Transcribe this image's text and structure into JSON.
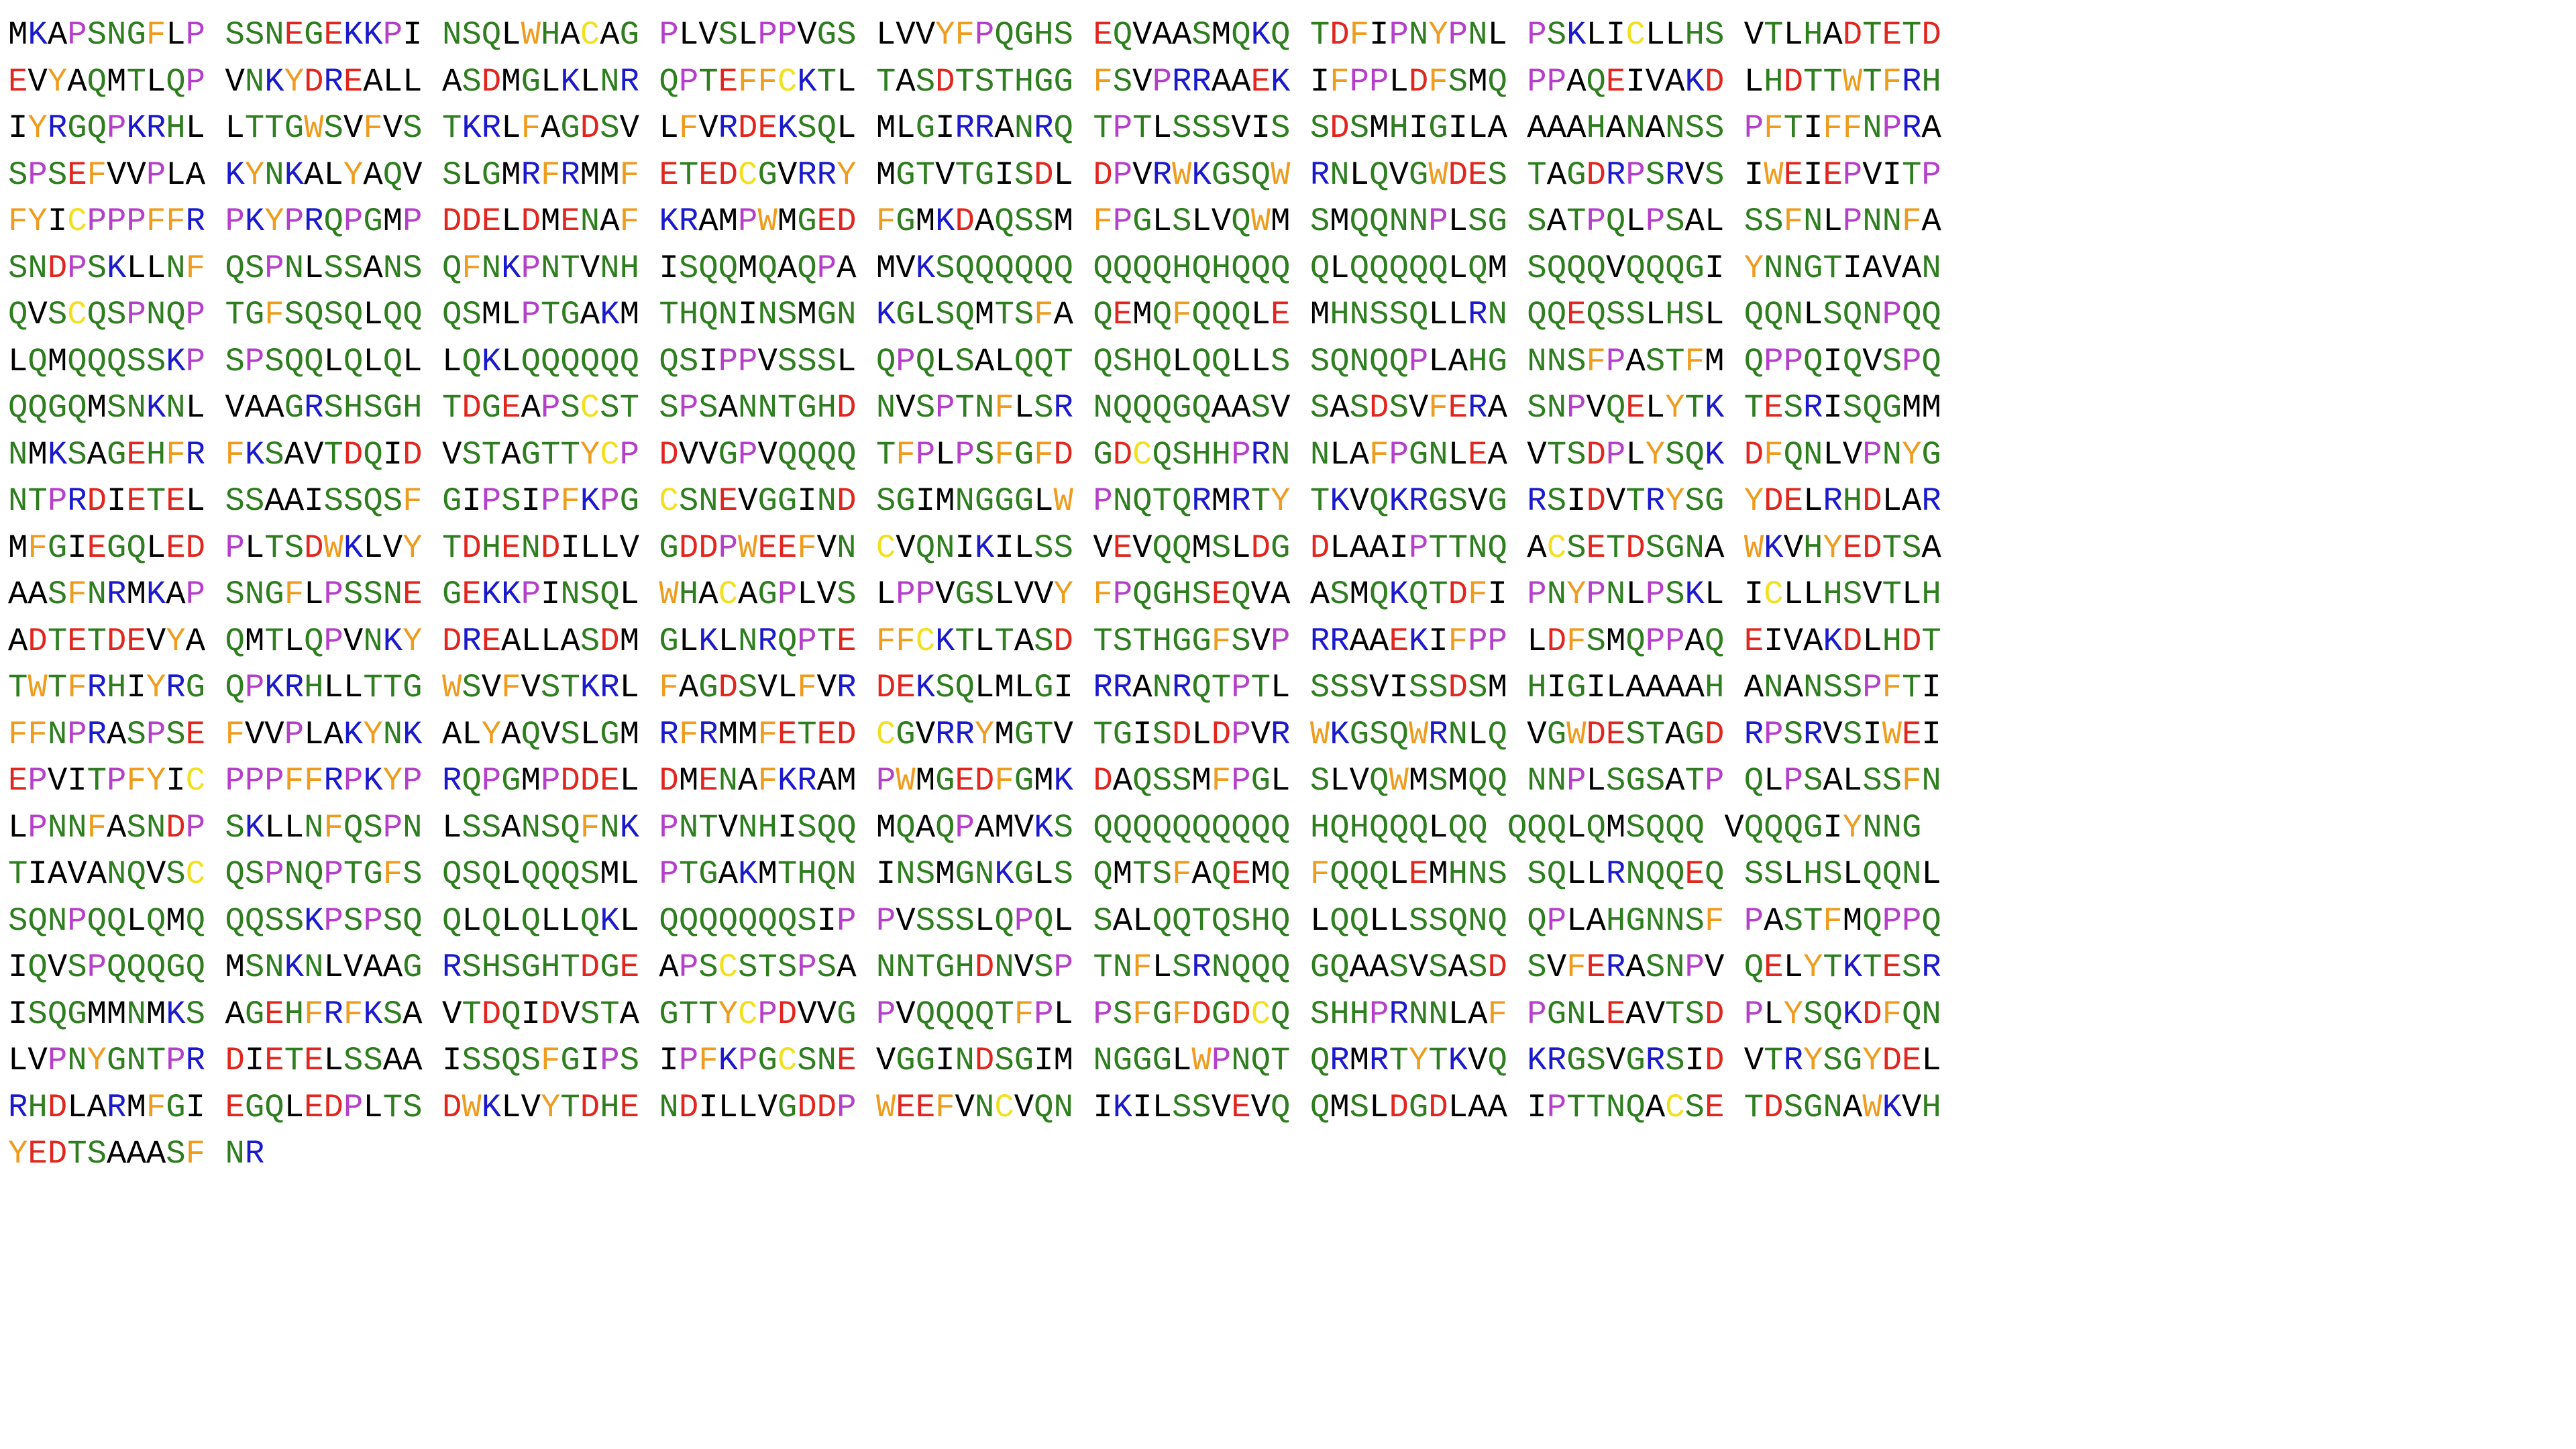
{
  "sequence": {
    "lines": [
      "MKAPSNGFLP SSNEGEKKPI NSQLWHACAG PLVSLPPVGS LVVYFPQGHS EQVAASMQKQ TDFIPNYPNL PSKLICLLHS VTLHADTETD",
      "EVYAQMTLQP VNKYDREALL ASDMGLKLNR QPTEFFCKTL TASDTSTHGG FSVPRRAAEK IFPPLDFSMQ PPAQEIVAKD LHDTTWTFRH",
      "IYRGQPKRHL LTTGWSVFVS TKRLFAGDSV LFVRDEKSQL MLGIRRANRQ TPTLSSSVIS SDSMHIGILA AAAHANANSS PFTIFFNPRA",
      "SPSEFVVPLA KYNKALYAQV SLGMRFRMMF ETEDCGVRRY MGTVTGISDL DPVRWKGSQW RNLQVGWDES TAGDRPSRVS IWEIEPVITP",
      "FYICPPPFFR PKYPRQPGMP DDELDMENAF KRAMPWMGED FGMKDAQSSM FPGLSLVQWM SMQQNNPLSG SATPQLPSAL SSFNLPNNFA",
      "SNDPSKLLNF QSPNLSSANS QFNKPNTVNH ISQQMQAQPA MVKSQQQQQQ QQQQHQHQQQ QLQQQQQLQM SQQQVQQQGI YNNGTIAVAN",
      "QVSCQSPNQP TGFSQSQLQQ QSMLPTGAKM THQNINSMGN KGLSQMTSFA QEMQFQQQLE MHNSSQLLRN QQEQSSLHSL QQNLSQNPQQ",
      "LQMQQQSSKP SPSQQLQLQL LQKLQQQQQQ QSIPPVSSSL QPQLSALQQT QSHQLQQLLS SQNQQPLAHG NNSFPASTFM QPPQIQVSPQ",
      "QQGQMSNKNL VAAGRSHSGH TDGEAPSCST SPSANNTGHD NVSPTNFLSR NQQQGQAASV SASDSVFERA SNPVQELYTK TESRISQGMM",
      "NMKSAGEHFR FKSAVTDQID VSTAGTTYCP DVVGPVQQQQ TFPLPSFGFD GDCQSHHPRN NLAFPGNLEA VTSDPLYSQK DFQNLVPNYG",
      "NTPRDIETEL SSAAISSQSF GIPSIPFKPG CSNEVGGIND SGIMNGGGLW PNQTQRMRTY TKVQKRGSVG RSIDVTRYSG YDELRHDLAR",
      "MFGIEGQLED PLTSDWKLVY TDHENDILLV GDDPWEEFVN CVQNIKILSS VEVQQMSLDG DLAAIPTTNQ ACSETDSGNA WKVHYEDTSA",
      "AASFNRMKAP SNGFLPSSNE GEKKPINSQL WHACAGPLVS LPPVGSLVVY FPQGHSEQVA ASMQKQTDFI PNYPNLPSKL ICLLHSVTLH",
      "ADTETDEVYA QMTLQPVNKY DREALLASDM GLKLNRQPTE FFCKTLTASD TSTHGGFSVP RRAAEKIFPP LDFSMQPPAQ EIVAKDLHDT",
      "TWTFRHIYRG QPKRHLLTTG WSVFVSTKRL FAGDSVLFVR DEKSQLMLGI RRANRQTPTL SSSVISSDSM HIGILAAAAH ANANSSPFTI",
      "FFNPRASPSE FVVPLAKYNK ALYAQVSLGM RFRMMFETED CGVRRYMGTV TGISDLDPVR WKGSQWRNLQ VGWDESTAGD RPSRVSIWEI",
      "EPVITPFYIC PPPFFRPKYP RQPGMPDDEL DMENAFKRAM PWMGEDFGMK DAQSSMFPGL SLVQWMSMQQ NNPLSGSATP QLPSALSSFN",
      "LPNNFASNDP SKLLNFQSPN LSSANSQFNK PNTVNHISQQ MQAQPAMVKS QQQQQQQQQQ HQHQQQLQQ QQQLQMSQQQ VQQQGIYNNG",
      "TIAVANQVSC QSPNQPTGFS QSQLQQQSML PTGAKMTHQN INSMGNKGLS QMTSFAQEMQ FQQQLEMHNS SQLLRNQQEQ SSLHSLQQNL",
      "SQNPQQLQMQ QQSSKPSPSQ QLQLQLLQKL QQQQQQQSIP PVSSSLQPQL SALQQTQSHQ LQQLLSSQNQ QPLAHGNNSF PASTFMQPPQ",
      "IQVSPQQQGQ MSNKNLVAAG RSHSGHTDGE APSCSTSPSA NNTGHDNVSP TNFLSRNQQQ GQAASVSASD SVFERASNPV QELYTKTESR",
      "ISQGMMNMKS AGEHFRFKSA VTDQIDVSTA GTTYCPDVVG PVQQQQTFPL PSFGFDGDCQ SHHPRNNLAF PGNLEAVTSD PLYSQKDFQN",
      "LVPNYGNTPR DIETELSSAA ISSQSFGIPS IPFKPGCSNE VGGINDSGIM NGGGLWPNQT QRMRTYTKVQ KRGSVGRSID VTRYSGYDEL",
      "RHDLARMFGI EGQLEDPLTS DWKLVYTDHE NDILLVGDDP WEEFVNCVQN IKILSSVEVQ QMSLDGDLAA IPTTNQACSE TDSGNAWKVH",
      "YEDTSAAASF NR"
    ]
  },
  "residue_colors": {
    "hydrophobic": "#000000",
    "polar": "#2e7d1f",
    "basic": "#1a1acc",
    "acidic": "#e0261e",
    "proline": "#b43fc9",
    "aromatic": "#ee9c1e",
    "cysteine": "#f2e020"
  }
}
